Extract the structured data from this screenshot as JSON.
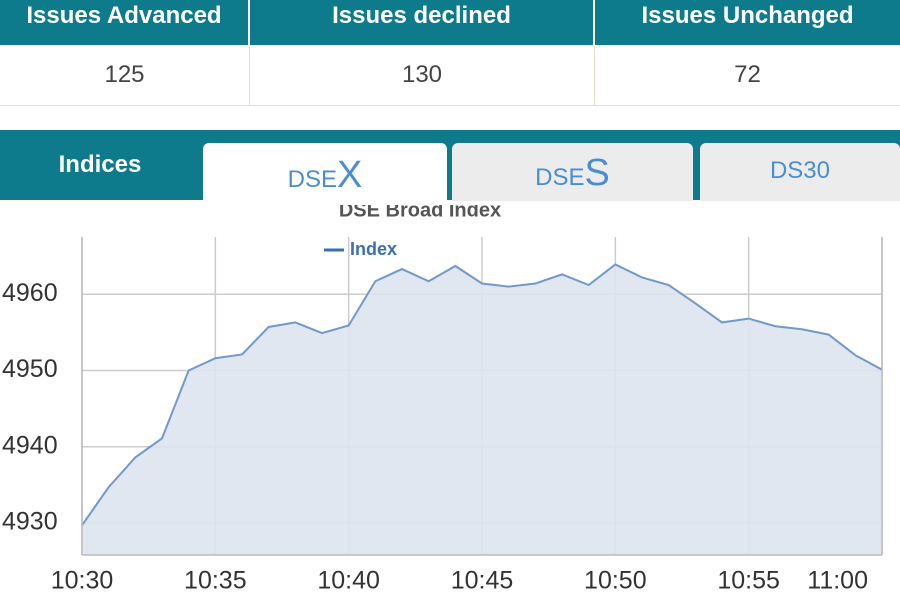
{
  "stats": {
    "headers": [
      "Issues Advanced",
      "Issues declined",
      "Issues Unchanged"
    ],
    "values": [
      "125",
      "130",
      "72"
    ]
  },
  "tabs": [
    [
      "Indices"
    ],
    [
      "DSE",
      "X"
    ],
    [
      "DSE",
      "S"
    ],
    [
      "DS30"
    ]
  ],
  "chart_data": {
    "type": "line",
    "title": "DSE Broad Index",
    "categories": [
      "10:30",
      null,
      null,
      null,
      null,
      "10:35",
      null,
      null,
      null,
      null,
      "10:40",
      null,
      null,
      null,
      null,
      "10:45",
      null,
      null,
      null,
      null,
      "10:50",
      null,
      null,
      null,
      null,
      "10:55",
      null,
      null,
      null,
      null,
      "11:00"
    ],
    "series": [
      {
        "name": "Index",
        "color": "#7199c9",
        "values": [
          4929.7,
          4934.7,
          4938.6,
          4941.1,
          4950.0,
          4951.6,
          4952.1,
          4955.7,
          4956.3,
          4954.9,
          4955.9,
          4961.7,
          4963.3,
          4961.7,
          4963.7,
          4961.4,
          4961.0,
          4961.4,
          4962.6,
          4961.2,
          4963.9,
          4962.2,
          4961.2,
          4958.8,
          4956.3,
          4956.8,
          4955.8,
          4955.4,
          4954.7,
          4952.0,
          4950.1
        ]
      }
    ],
    "ylim": [
      4925.8,
      4967.5
    ],
    "yticks": [
      4930,
      4940,
      4950,
      4960
    ],
    "grid": true,
    "area_color": "#dde4ef"
  }
}
